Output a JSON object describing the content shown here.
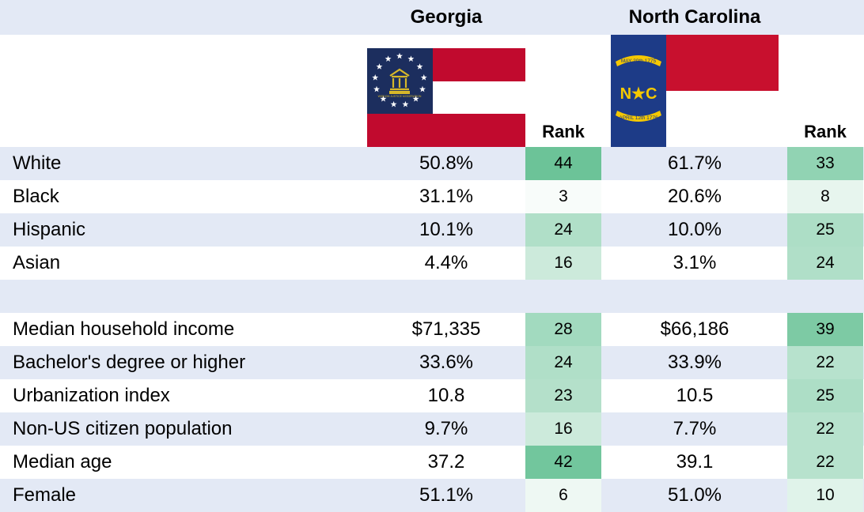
{
  "header": {
    "states": [
      {
        "name": "Georgia"
      },
      {
        "name": "North Carolina"
      }
    ],
    "rank_label": "Rank"
  },
  "flags": {
    "georgia": {
      "seal_text": "WISDOM JUSTICE MODERATION",
      "colors": {
        "blue": "#1c2e5e",
        "red": "#c10a2e",
        "white": "#ffffff",
        "gold": "#d6b72a"
      }
    },
    "north_carolina": {
      "top_ribbon": "MAY 20th 1775",
      "letters": "N★C",
      "bottom_ribbon": "APRIL 12th 1776",
      "colors": {
        "blue": "#1d3b87",
        "red": "#c8102e",
        "white": "#ffffff",
        "gold": "#f5c800"
      }
    }
  },
  "chart_data": {
    "type": "table",
    "columns": [
      "Georgia",
      "Rank",
      "North Carolina",
      "Rank"
    ],
    "rows": [
      {
        "label": "White",
        "ga_value": "50.8%",
        "ga_rank": 44,
        "nc_value": "61.7%",
        "nc_rank": 33
      },
      {
        "label": "Black",
        "ga_value": "31.1%",
        "ga_rank": 3,
        "nc_value": "20.6%",
        "nc_rank": 8
      },
      {
        "label": "Hispanic",
        "ga_value": "10.1%",
        "ga_rank": 24,
        "nc_value": "10.0%",
        "nc_rank": 25
      },
      {
        "label": "Asian",
        "ga_value": "4.4%",
        "ga_rank": 16,
        "nc_value": "3.1%",
        "nc_rank": 24
      },
      {
        "label": "",
        "ga_value": "",
        "ga_rank": null,
        "nc_value": "",
        "nc_rank": null
      },
      {
        "label": "Median household income",
        "ga_value": "$71,335",
        "ga_rank": 28,
        "nc_value": "$66,186",
        "nc_rank": 39
      },
      {
        "label": "Bachelor's degree or higher",
        "ga_value": "33.6%",
        "ga_rank": 24,
        "nc_value": "33.9%",
        "nc_rank": 22
      },
      {
        "label": "Urbanization index",
        "ga_value": "10.8",
        "ga_rank": 23,
        "nc_value": "10.5",
        "nc_rank": 25
      },
      {
        "label": "Non-US citizen population",
        "ga_value": "9.7%",
        "ga_rank": 16,
        "nc_value": "7.7%",
        "nc_rank": 22
      },
      {
        "label": "Median age",
        "ga_value": "37.2",
        "ga_rank": 42,
        "nc_value": "39.1",
        "nc_rank": 22
      },
      {
        "label": "Female",
        "ga_value": "51.1%",
        "ga_rank": 6,
        "nc_value": "51.0%",
        "nc_rank": 10
      }
    ],
    "rank_color_scale": {
      "low": "#ffffff",
      "high": "#57bb8a",
      "min": 1,
      "max": 50
    },
    "band_color": "#e3e9f5"
  }
}
